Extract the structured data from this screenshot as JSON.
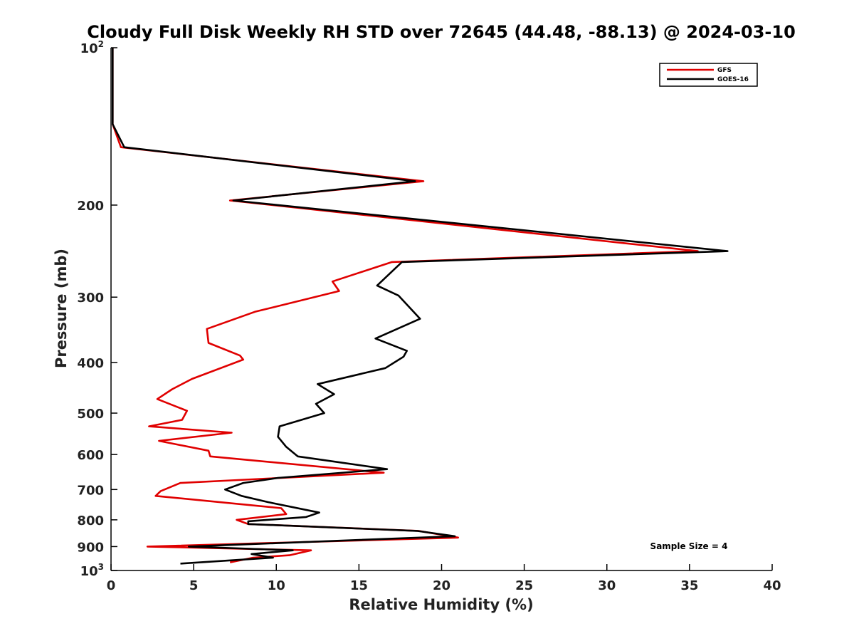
{
  "chart_data": {
    "type": "line",
    "title": "Cloudy Full Disk Weekly RH STD over 72645 (44.48, -88.13) @ 2024-03-10",
    "xlabel": "Relative Humidity (%)",
    "ylabel": "Pressure (mb)",
    "xlim": [
      0,
      40
    ],
    "ylim": [
      100,
      1000
    ],
    "yscale": "log",
    "y_reversed": true,
    "x_ticks": [
      "0",
      "5",
      "10",
      "15",
      "20",
      "25",
      "30",
      "35",
      "40"
    ],
    "y_ticks": [
      {
        "value": 100,
        "base": "10",
        "exp": "2"
      },
      {
        "value": 200,
        "label": "200"
      },
      {
        "value": 300,
        "label": "300"
      },
      {
        "value": 400,
        "label": "400"
      },
      {
        "value": 500,
        "label": "500"
      },
      {
        "value": 600,
        "label": "600"
      },
      {
        "value": 700,
        "label": "700"
      },
      {
        "value": 800,
        "label": "800"
      },
      {
        "value": 900,
        "label": "900"
      },
      {
        "value": 1000,
        "base": "10",
        "exp": "3"
      }
    ],
    "grid": false,
    "legend_position": "top-right",
    "annotation": "Sample Size = 4",
    "series": [
      {
        "name": "GFS",
        "color": "#e00000",
        "x": [
          0.1,
          0.1,
          0.1,
          0.1,
          0.6,
          18.9,
          7.2,
          35.5,
          17.0,
          13.4,
          13.8,
          8.7,
          5.8,
          5.9,
          7.8,
          8.0,
          4.9,
          3.7,
          2.8,
          4.6,
          4.3,
          2.3,
          7.3,
          2.9,
          5.9,
          6.0,
          16.5,
          4.2,
          3.0,
          2.7,
          10.3,
          10.6,
          7.6,
          8.3,
          18.6,
          21.0,
          2.2,
          12.1,
          10.8,
          8.6,
          7.2
        ],
        "y": [
          100,
          110,
          125,
          140,
          155,
          180,
          196,
          245,
          257,
          280,
          292,
          320,
          345,
          367,
          388,
          395,
          430,
          450,
          470,
          495,
          515,
          530,
          545,
          565,
          590,
          605,
          650,
          680,
          705,
          720,
          760,
          780,
          800,
          815,
          840,
          865,
          900,
          915,
          935,
          945,
          965
        ]
      },
      {
        "name": "GOES-16",
        "color": "#000000",
        "x": [
          0.1,
          0.1,
          0.1,
          0.1,
          0.8,
          18.4,
          7.4,
          37.3,
          17.6,
          16.1,
          17.4,
          18.7,
          16.0,
          17.9,
          17.7,
          16.6,
          12.5,
          13.5,
          12.4,
          12.9,
          10.2,
          10.1,
          10.6,
          11.3,
          16.7,
          10.1,
          8.0,
          6.9,
          7.9,
          9.5,
          12.6,
          11.8,
          8.3,
          8.3,
          18.5,
          20.8,
          4.7,
          11.0,
          8.5,
          9.8,
          4.2
        ],
        "y": [
          100,
          110,
          125,
          140,
          155,
          180,
          196,
          245,
          257,
          285,
          298,
          330,
          360,
          380,
          390,
          410,
          440,
          460,
          480,
          500,
          530,
          555,
          580,
          605,
          640,
          665,
          680,
          700,
          720,
          740,
          775,
          790,
          805,
          815,
          840,
          860,
          900,
          915,
          930,
          945,
          970
        ]
      }
    ]
  }
}
